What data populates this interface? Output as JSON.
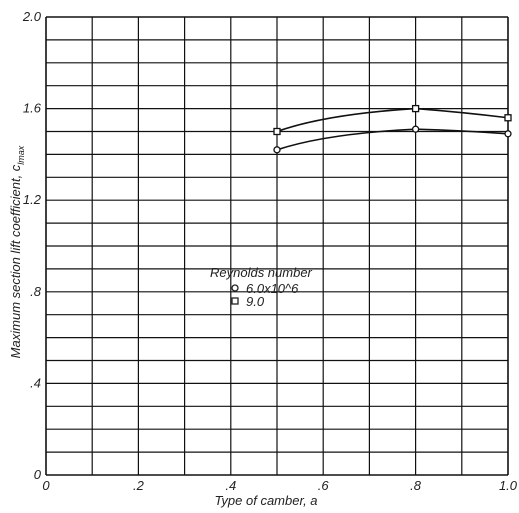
{
  "chart_data": {
    "type": "line",
    "title": "",
    "xlabel": "Type of camber, a",
    "ylabel": "Maximum section lift coefficient, c",
    "ylabel_subscript": "lmax",
    "xlim": [
      0,
      1.0
    ],
    "ylim": [
      0,
      2.0
    ],
    "x_tick_labels": [
      "0",
      ".2",
      ".4",
      ".6",
      ".8",
      "1.0"
    ],
    "y_tick_labels": [
      "0",
      ".4",
      ".8",
      "1.2",
      "1.6",
      "2.0"
    ],
    "grid": true,
    "legend_position": "center-left",
    "legend_title": "Reynolds number",
    "series": [
      {
        "name": "6.0x10^6",
        "marker": "circle",
        "x": [
          0.5,
          0.8,
          1.0
        ],
        "y": [
          1.42,
          1.51,
          1.49
        ]
      },
      {
        "name": "9.0",
        "marker": "square",
        "x": [
          0.5,
          0.8,
          1.0
        ],
        "y": [
          1.5,
          1.6,
          1.56
        ]
      }
    ]
  }
}
